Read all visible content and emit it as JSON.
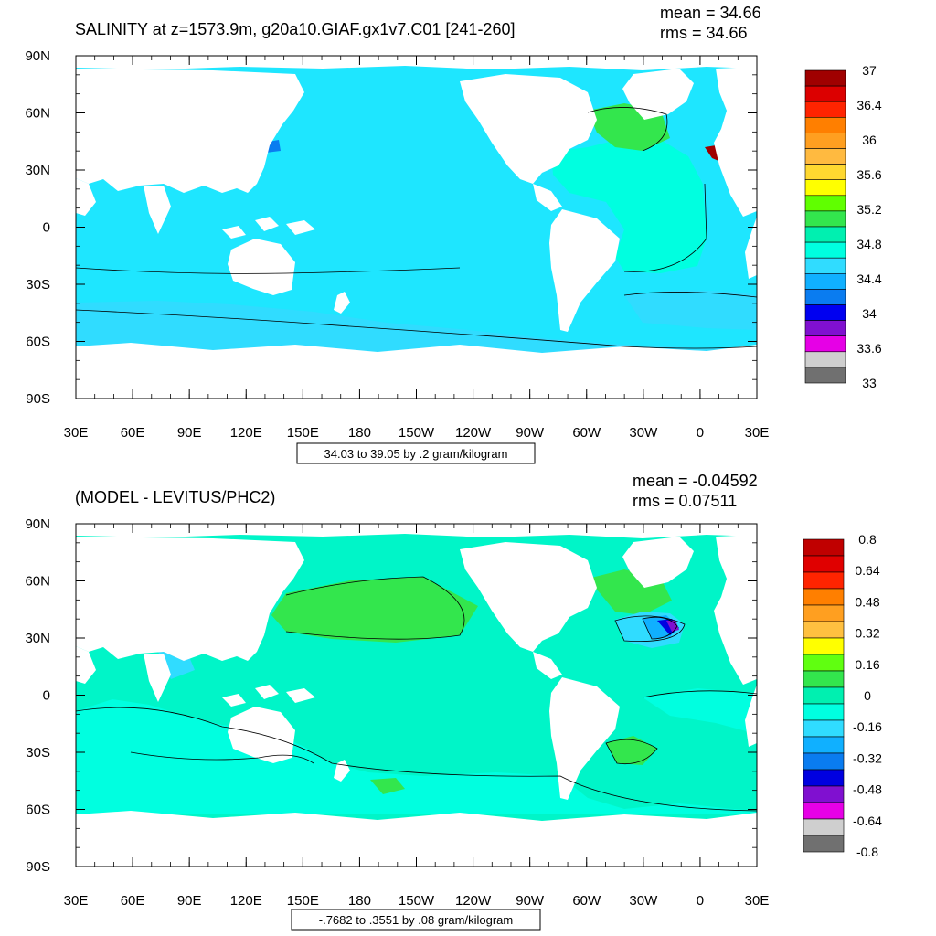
{
  "charts": [
    {
      "title": "SALINITY at z=1573.9m, g20a10.GIAF.gx1v7.C01 [241-260]",
      "stats": {
        "mean": "mean = 34.66",
        "rms": "rms = 34.66"
      },
      "range_text": "34.03 to 39.05 by .2 gram/kilogram",
      "x_ticks": [
        "30E",
        "60E",
        "90E",
        "120E",
        "150E",
        "180",
        "150W",
        "120W",
        "90W",
        "60W",
        "30W",
        "0",
        "30E"
      ],
      "y_ticks": [
        "90N",
        "60N",
        "30N",
        "0",
        "30S",
        "60S",
        "90S"
      ],
      "ocean_color": "#1ee6ff",
      "colorbar": {
        "colors": [
          "#a00000",
          "#dc0000",
          "#ff2400",
          "#ff7f00",
          "#ff9f20",
          "#ffba40",
          "#ffd830",
          "#ffff00",
          "#60ff00",
          "#33e64d",
          "#00f0b0",
          "#00ffe0",
          "#30dcff",
          "#10b0ff",
          "#0a7cf0",
          "#0000f0",
          "#8010d0",
          "#e600e6",
          "#cfcfcf",
          "#707070"
        ],
        "labels": [
          "37",
          "36.4",
          "36",
          "35.6",
          "35.2",
          "34.8",
          "34.4",
          "34",
          "33.6",
          "33"
        ]
      }
    },
    {
      "title": "(MODEL - LEVITUS/PHC2)",
      "stats": {
        "mean": "mean = -0.04592",
        "rms": "rms = 0.07511"
      },
      "range_text": "-.7682 to .3551 by .08 gram/kilogram",
      "x_ticks": [
        "30E",
        "60E",
        "90E",
        "120E",
        "150E",
        "180",
        "150W",
        "120W",
        "90W",
        "60W",
        "30W",
        "0",
        "30E"
      ],
      "y_ticks": [
        "90N",
        "60N",
        "30N",
        "0",
        "30S",
        "60S",
        "90S"
      ],
      "ocean_color": "#00f5c8",
      "colorbar": {
        "colors": [
          "#c00000",
          "#e00000",
          "#ff2400",
          "#ff7f00",
          "#ff9f20",
          "#ffc040",
          "#ffff00",
          "#60ff10",
          "#33e64d",
          "#00f0b0",
          "#00ffe0",
          "#30dcff",
          "#10b0ff",
          "#0a7cf0",
          "#0000e0",
          "#8010d0",
          "#e600e6",
          "#cfcfcf",
          "#707070"
        ],
        "labels": [
          "0.8",
          "0.64",
          "0.48",
          "0.32",
          "0.16",
          "0",
          "-0.16",
          "-0.32",
          "-0.48",
          "-0.64",
          "-0.8"
        ]
      }
    }
  ]
}
